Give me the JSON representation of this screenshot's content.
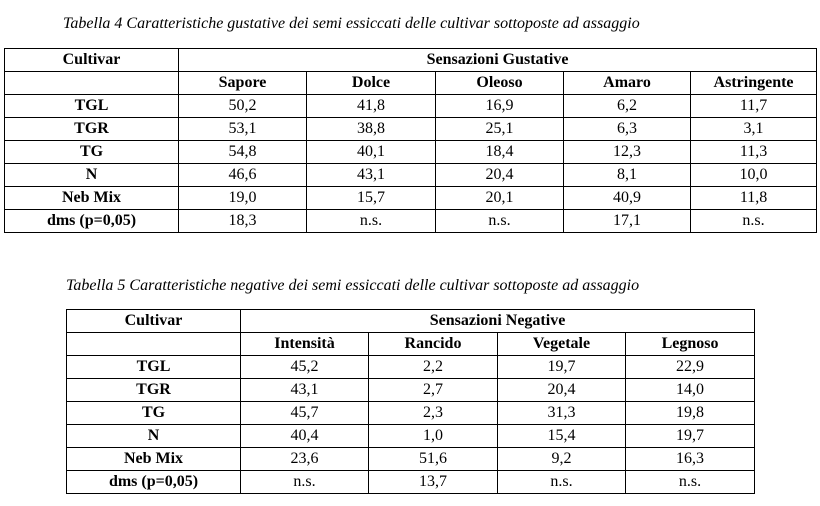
{
  "table4": {
    "caption": "Tabella 4 Caratteristiche gustative dei semi essiccati delle cultivar sottoposte ad assaggio",
    "corner_header": "Cultivar",
    "group_header": "Sensazioni Gustative",
    "columns": [
      "Sapore",
      "Dolce",
      "Oleoso",
      "Amaro",
      "Astringente"
    ],
    "rows": [
      {
        "cultivar": "TGL",
        "values": [
          "50,2",
          "41,8",
          "16,9",
          "6,2",
          "11,7"
        ]
      },
      {
        "cultivar": "TGR",
        "values": [
          "53,1",
          "38,8",
          "25,1",
          "6,3",
          "3,1"
        ]
      },
      {
        "cultivar": "TG",
        "values": [
          "54,8",
          "40,1",
          "18,4",
          "12,3",
          "11,3"
        ]
      },
      {
        "cultivar": "N",
        "values": [
          "46,6",
          "43,1",
          "20,4",
          "8,1",
          "10,0"
        ]
      },
      {
        "cultivar": "Neb Mix",
        "values": [
          "19,0",
          "15,7",
          "20,1",
          "40,9",
          "11,8"
        ]
      },
      {
        "cultivar": "dms (p=0,05)",
        "values": [
          "18,3",
          "n.s.",
          "n.s.",
          "17,1",
          "n.s."
        ]
      }
    ]
  },
  "table5": {
    "caption": "Tabella 5 Caratteristiche negative dei semi essiccati delle cultivar sottoposte ad assaggio",
    "corner_header": "Cultivar",
    "group_header": "Sensazioni Negative",
    "columns": [
      "Intensità",
      "Rancido",
      "Vegetale",
      "Legnoso"
    ],
    "rows": [
      {
        "cultivar": "TGL",
        "values": [
          "45,2",
          "2,2",
          "19,7",
          "22,9"
        ]
      },
      {
        "cultivar": "TGR",
        "values": [
          "43,1",
          "2,7",
          "20,4",
          "14,0"
        ]
      },
      {
        "cultivar": "TG",
        "values": [
          "45,7",
          "2,3",
          "31,3",
          "19,8"
        ]
      },
      {
        "cultivar": "N",
        "values": [
          "40,4",
          "1,0",
          "15,4",
          "19,7"
        ]
      },
      {
        "cultivar": "Neb Mix",
        "values": [
          "23,6",
          "51,6",
          "9,2",
          "16,3"
        ]
      },
      {
        "cultivar": "dms (p=0,05)",
        "values": [
          "n.s.",
          "13,7",
          "n.s.",
          "n.s."
        ]
      }
    ]
  }
}
